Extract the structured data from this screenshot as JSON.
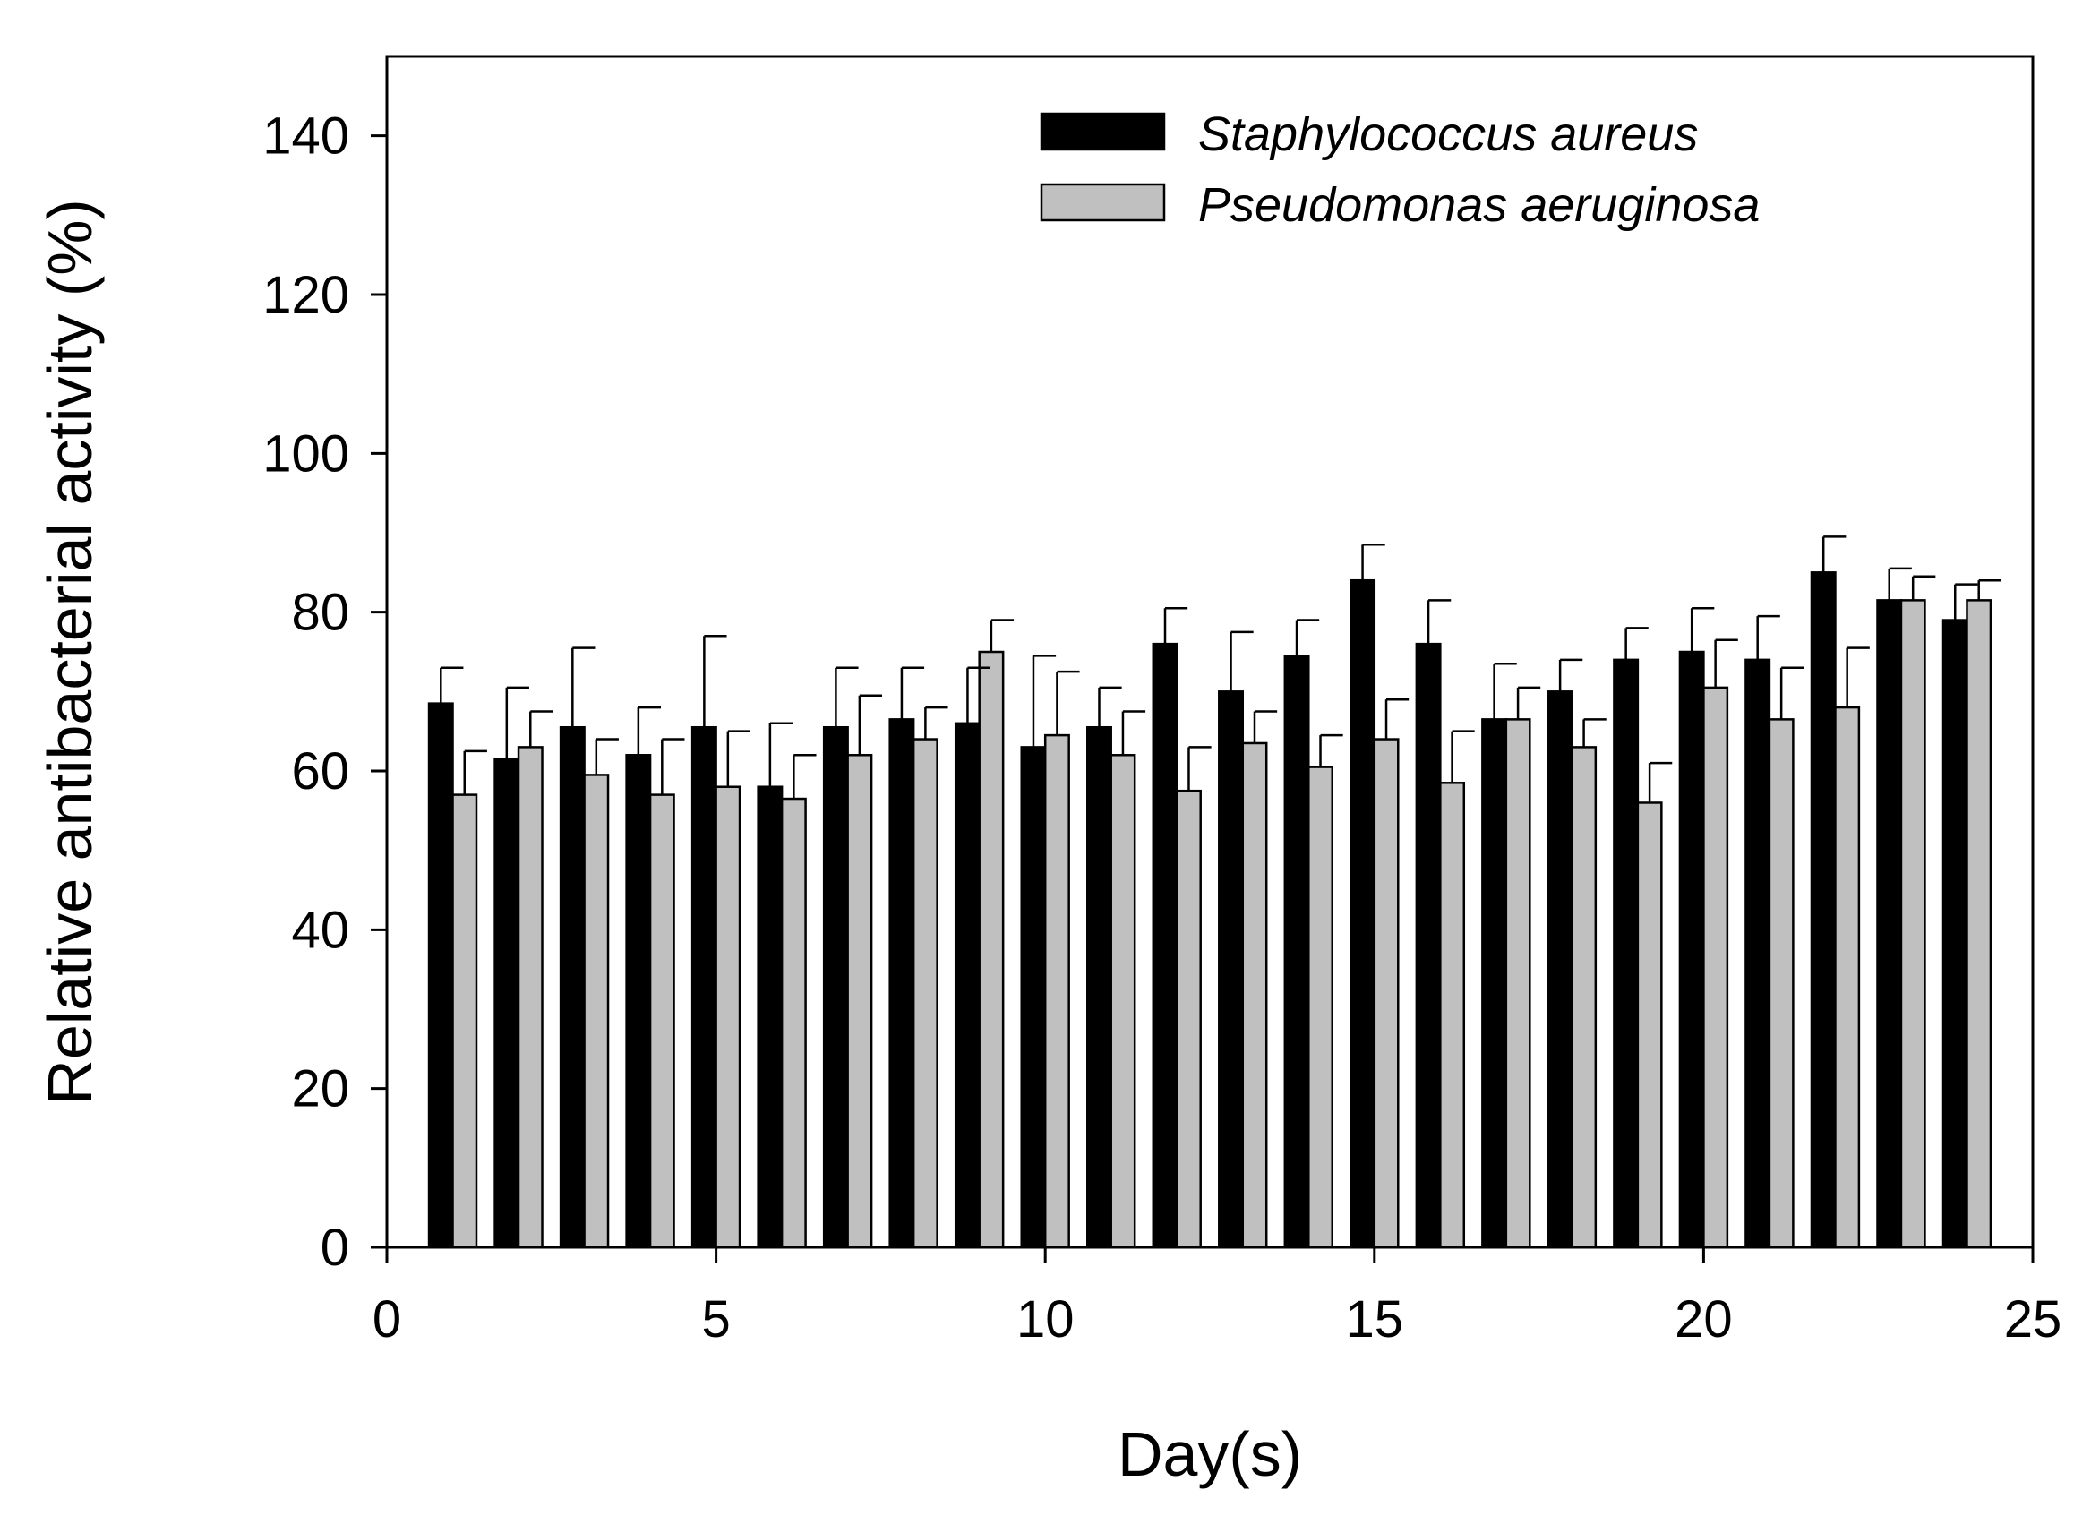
{
  "chart_data": {
    "type": "bar",
    "xlabel": "Day(s)",
    "ylabel": "Relative antibacterial activity (%)",
    "xlim": [
      0,
      25
    ],
    "ylim": [
      0,
      150
    ],
    "x_ticks": [
      0,
      5,
      10,
      15,
      20,
      25
    ],
    "y_ticks": [
      0,
      20,
      40,
      60,
      80,
      100,
      120,
      140
    ],
    "legend_position": "top-right",
    "categories": [
      1,
      2,
      3,
      4,
      5,
      6,
      7,
      8,
      9,
      10,
      11,
      12,
      13,
      14,
      15,
      16,
      17,
      18,
      19,
      20,
      21,
      22,
      23,
      24
    ],
    "series": [
      {
        "name": "Staphylococcus aureus",
        "color": "#000000",
        "values": [
          68.5,
          61.5,
          65.5,
          62,
          65.5,
          58,
          65.5,
          66.5,
          66,
          63,
          65.5,
          76,
          70,
          74.5,
          84,
          76,
          66.5,
          70,
          74,
          75,
          74,
          85,
          81.5,
          79
        ],
        "errors": [
          4.5,
          9,
          10,
          6,
          11.5,
          8,
          7.5,
          6.5,
          7,
          11.5,
          5,
          4.5,
          7.5,
          4.5,
          4.5,
          5.5,
          7,
          4,
          4,
          5.5,
          5.5,
          4.5,
          4,
          4.5
        ]
      },
      {
        "name": "Pseudomonas aeruginosa",
        "color": "#c0c0c0",
        "values": [
          57,
          63,
          59.5,
          57,
          58,
          56.5,
          62,
          64,
          75,
          64.5,
          62,
          57.5,
          63.5,
          60.5,
          64,
          58.5,
          66.5,
          63,
          56,
          70.5,
          66.5,
          68,
          81.5,
          81.5
        ],
        "errors": [
          5.5,
          4.5,
          4.5,
          7,
          7,
          5.5,
          7.5,
          4,
          4,
          8,
          5.5,
          5.5,
          4,
          4,
          5,
          6.5,
          4,
          3.5,
          5,
          6,
          6.5,
          7.5,
          3,
          2.5
        ]
      }
    ]
  }
}
